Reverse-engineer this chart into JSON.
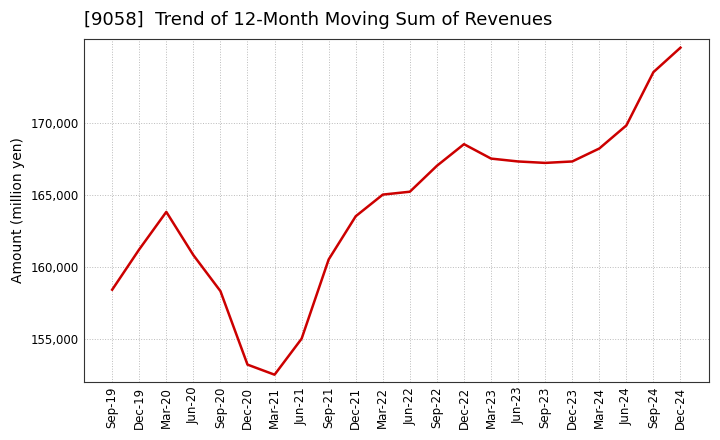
{
  "title": "[9058]  Trend of 12-Month Moving Sum of Revenues",
  "ylabel": "Amount (million yen)",
  "line_color": "#cc0000",
  "background_color": "#ffffff",
  "grid_color": "#bbbbbb",
  "x_labels": [
    "Sep-19",
    "Dec-19",
    "Mar-20",
    "Jun-20",
    "Sep-20",
    "Dec-20",
    "Mar-21",
    "Jun-21",
    "Sep-21",
    "Dec-21",
    "Mar-22",
    "Jun-22",
    "Sep-22",
    "Dec-22",
    "Mar-23",
    "Jun-23",
    "Sep-23",
    "Dec-23",
    "Mar-24",
    "Jun-24",
    "Sep-24",
    "Dec-24"
  ],
  "y_values": [
    158400,
    161200,
    163800,
    160800,
    158300,
    153200,
    152500,
    155000,
    160500,
    163500,
    165000,
    165200,
    167000,
    168500,
    167500,
    167300,
    167200,
    167300,
    168200,
    169800,
    173500,
    175200
  ],
  "ylim_min": 152000,
  "ylim_max": 175800,
  "yticks": [
    155000,
    160000,
    165000,
    170000
  ],
  "title_fontsize": 13,
  "label_fontsize": 10,
  "tick_fontsize": 8.5
}
